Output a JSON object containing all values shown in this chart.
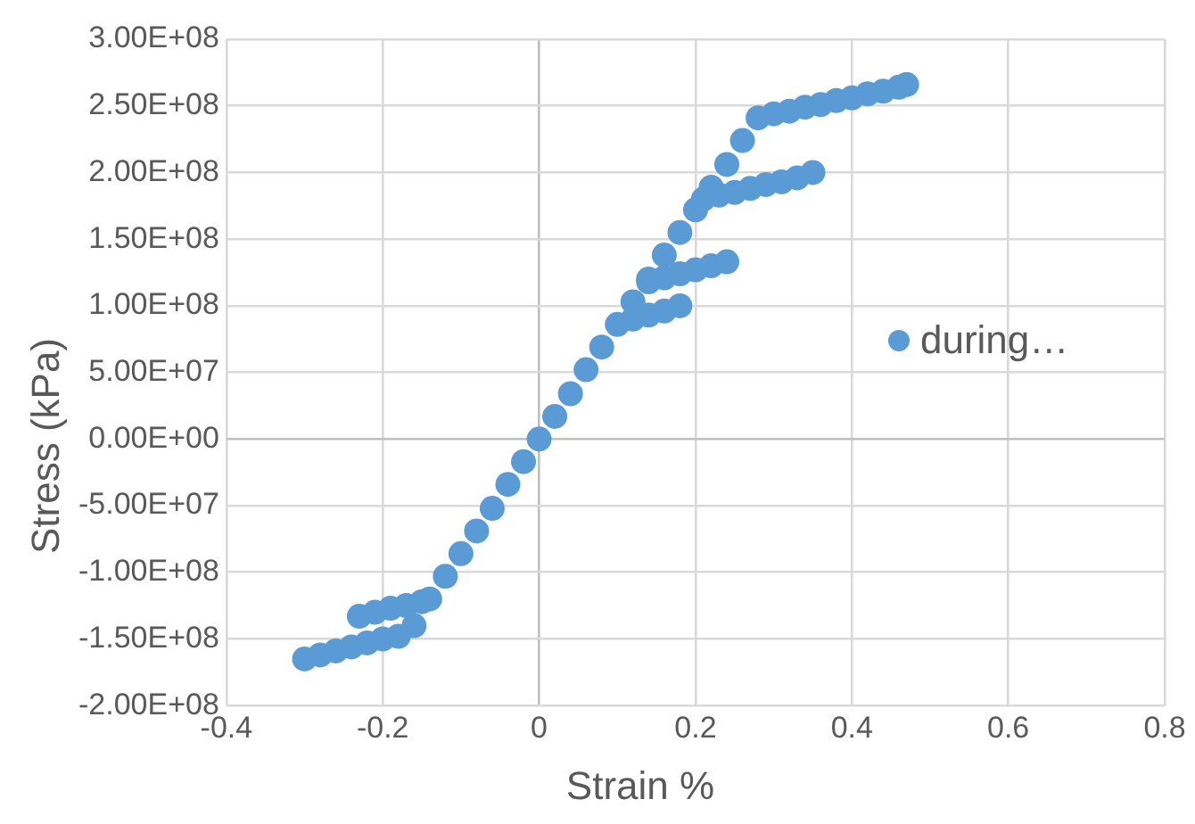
{
  "chart_data": {
    "type": "scatter",
    "xlabel": "Strain %",
    "ylabel": "Stress (kPa)",
    "series": [
      {
        "name": "during…",
        "color": "#5b9bd5",
        "x": [
          -0.16,
          -0.14,
          -0.12,
          -0.1,
          -0.08,
          -0.06,
          -0.04,
          -0.02,
          0,
          0.02,
          0.04,
          0.06,
          0.08,
          0.1,
          0.12,
          0.14,
          0.16,
          0.18,
          0.2,
          0.22,
          0.24,
          0.26,
          0.28,
          0.12,
          0.14,
          0.16,
          0.18,
          0.14,
          0.16,
          0.18,
          0.2,
          0.22,
          0.24,
          0.21,
          0.23,
          0.25,
          0.27,
          0.29,
          0.31,
          0.33,
          0.35,
          0.3,
          0.32,
          0.34,
          0.36,
          0.38,
          0.4,
          0.42,
          0.44,
          0.46,
          0.47,
          -0.15,
          -0.17,
          -0.19,
          -0.21,
          -0.23,
          -0.18,
          -0.2,
          -0.22,
          -0.24,
          -0.26,
          -0.28,
          -0.3
        ],
        "values": [
          -140000000.0,
          -120000000.0,
          -103000000.0,
          -86000000.0,
          -69000000.0,
          -52000000.0,
          -34000000.0,
          -17000000.0,
          0,
          17000000.0,
          34000000.0,
          52000000.0,
          69000000.0,
          86000000.0,
          103000000.0,
          120000000.0,
          138000000.0,
          155000000.0,
          172000000.0,
          189000000.0,
          206000000.0,
          224000000.0,
          241000000.0,
          90000000.0,
          93000000.0,
          96000000.0,
          100000000.0,
          118000000.0,
          121000000.0,
          124000000.0,
          127000000.0,
          130000000.0,
          133000000.0,
          180000000.0,
          183000000.0,
          185000000.0,
          188000000.0,
          191000000.0,
          193000000.0,
          196000000.0,
          200000000.0,
          244000000.0,
          246000000.0,
          249000000.0,
          251000000.0,
          254000000.0,
          256000000.0,
          259000000.0,
          261000000.0,
          264000000.0,
          266000000.0,
          -122000000.0,
          -125000000.0,
          -127000000.0,
          -130000000.0,
          -133000000.0,
          -148000000.0,
          -150000000.0,
          -153000000.0,
          -156000000.0,
          -159000000.0,
          -162000000.0,
          -165000000.0
        ]
      }
    ],
    "xlim": [
      -0.4,
      0.8
    ],
    "xticks": [
      -0.4,
      -0.2,
      0,
      0.2,
      0.4,
      0.6,
      0.8
    ],
    "ylim": [
      -200000000.0,
      300000000.0
    ],
    "yticks": [
      {
        "value": -200000000.0,
        "label": "-2.00E+08"
      },
      {
        "value": -150000000.0,
        "label": "-1.50E+08"
      },
      {
        "value": -100000000.0,
        "label": "-1.00E+08"
      },
      {
        "value": -50000000.0,
        "label": "-5.00E+07"
      },
      {
        "value": 0,
        "label": "0.00E+00"
      },
      {
        "value": 50000000.0,
        "label": "5.00E+07"
      },
      {
        "value": 100000000.0,
        "label": "1.00E+08"
      },
      {
        "value": 150000000.0,
        "label": "1.50E+08"
      },
      {
        "value": 200000000.0,
        "label": "2.00E+08"
      },
      {
        "value": 250000000.0,
        "label": "2.50E+08"
      },
      {
        "value": 300000000.0,
        "label": "3.00E+08"
      }
    ],
    "grid": true,
    "legend": "right",
    "marker": "circle"
  }
}
